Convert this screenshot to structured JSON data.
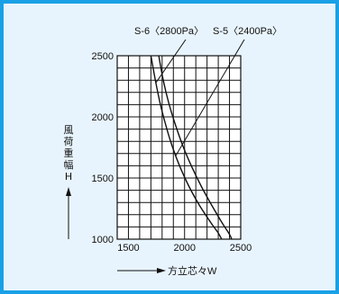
{
  "colors": {
    "frame": "#1aa0e6",
    "background": "#e8f4fd",
    "grid": "#111111",
    "curve": "#111111"
  },
  "chart_data": {
    "type": "line",
    "title": "",
    "xlabel": "方立芯々W",
    "ylabel": "風荷重幅 H",
    "ylabel_chars": [
      "風",
      "荷",
      "重",
      "幅",
      "H"
    ],
    "xlim": [
      1400,
      2500
    ],
    "ylim": [
      1000,
      2500
    ],
    "x_ticks": [
      1500,
      2000,
      2500
    ],
    "y_ticks": [
      1000,
      1500,
      2000,
      2500
    ],
    "x_tick_labels": [
      "1500",
      "2000",
      "2500"
    ],
    "y_tick_labels": [
      "1000",
      "1500",
      "2000",
      "2500"
    ],
    "grid": true,
    "series": [
      {
        "name": "S-6〈2800Pa〉",
        "points": [
          [
            1700,
            2500
          ],
          [
            1740,
            2300
          ],
          [
            1780,
            2120
          ],
          [
            1830,
            1940
          ],
          [
            1890,
            1760
          ],
          [
            1960,
            1590
          ],
          [
            2040,
            1430
          ],
          [
            2130,
            1280
          ],
          [
            2230,
            1140
          ],
          [
            2300,
            1050
          ],
          [
            2330,
            1000
          ]
        ]
      },
      {
        "name": "S-5〈2400Pa〉",
        "points": [
          [
            1770,
            2500
          ],
          [
            1810,
            2300
          ],
          [
            1860,
            2110
          ],
          [
            1920,
            1930
          ],
          [
            1990,
            1750
          ],
          [
            2070,
            1580
          ],
          [
            2150,
            1430
          ],
          [
            2240,
            1280
          ],
          [
            2330,
            1140
          ],
          [
            2400,
            1040
          ],
          [
            2420,
            1000
          ]
        ]
      }
    ],
    "annotations": [
      {
        "text": "S-6〈2800Pa〉",
        "target": [
          1745,
          2280
        ]
      },
      {
        "text": "S-5〈2400Pa〉",
        "target": [
          1920,
          1680
        ]
      }
    ]
  }
}
